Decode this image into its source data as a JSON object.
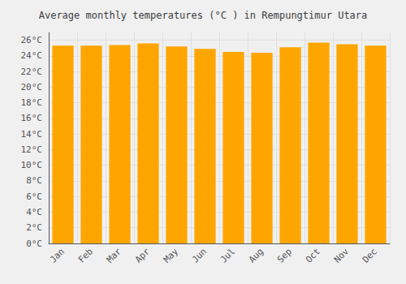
{
  "chart_data": {
    "type": "bar",
    "title": "Average monthly temperatures (°C ) in Rempungtimur Utara",
    "categories": [
      "Jan",
      "Feb",
      "Mar",
      "Apr",
      "May",
      "Jun",
      "Jul",
      "Aug",
      "Sep",
      "Oct",
      "Nov",
      "Dec"
    ],
    "values": [
      25.3,
      25.3,
      25.4,
      25.6,
      25.2,
      24.9,
      24.5,
      24.4,
      25.1,
      25.7,
      25.5,
      25.3
    ],
    "color": "#FFA500",
    "ylim": [
      0,
      27
    ],
    "yticks": [
      {
        "value": 0,
        "label": "0°C"
      },
      {
        "value": 2,
        "label": "2°C"
      },
      {
        "value": 4,
        "label": "4°C"
      },
      {
        "value": 6,
        "label": "6°C"
      },
      {
        "value": 8,
        "label": "8°C"
      },
      {
        "value": 10,
        "label": "10°C"
      },
      {
        "value": 12,
        "label": "12°C"
      },
      {
        "value": 14,
        "label": "14°C"
      },
      {
        "value": 16,
        "label": "16°C"
      },
      {
        "value": 18,
        "label": "18°C"
      },
      {
        "value": 20,
        "label": "20°C"
      },
      {
        "value": 22,
        "label": "22°C"
      },
      {
        "value": 24,
        "label": "24°C"
      },
      {
        "value": 26,
        "label": "26°C"
      }
    ],
    "grid": true
  }
}
